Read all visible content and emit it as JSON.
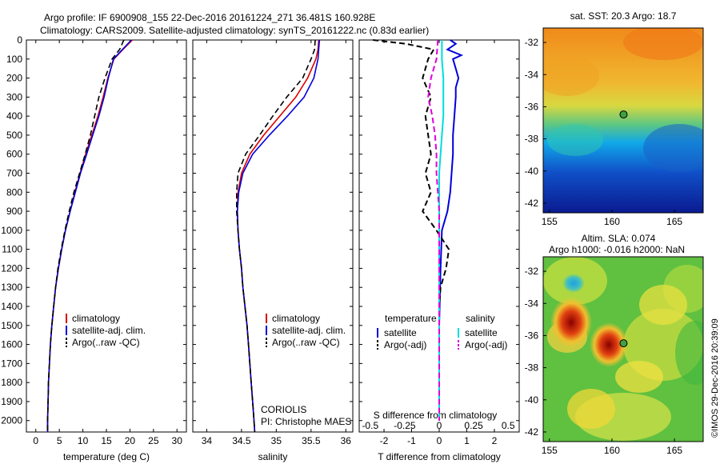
{
  "header": {
    "line1": "Argo profile: IF 6900908_155 22-Dec-2016 20161224_271 36.481S 160.928E",
    "line2": "Climatology: CARS2009. Satellite-adjusted climatology: synTS_20161222.nc (0.83d earlier)"
  },
  "colors": {
    "climatology": "#dd0000",
    "satellite": "#0000dd",
    "argo": "#000000",
    "salinity_satellite": "#00dddd",
    "salinity_argo": "#dd00dd"
  },
  "chart_data": [
    {
      "type": "line",
      "name": "temperature profile",
      "xlabel": "temperature (deg C)",
      "ylabel": "",
      "xlim": [
        -2,
        32
      ],
      "ylim": [
        2060,
        0
      ],
      "y_reversed": true,
      "xticks": [
        0,
        5,
        10,
        15,
        20,
        25,
        30
      ],
      "yticks": [
        0,
        100,
        200,
        300,
        400,
        500,
        600,
        700,
        800,
        900,
        1000,
        1100,
        1200,
        1300,
        1400,
        1500,
        1600,
        1700,
        1800,
        1900,
        2000
      ],
      "legend": [
        "climatology",
        "satellite-adj. clim.",
        "Argo(..raw -QC)"
      ],
      "legend_position": "lower-center",
      "series": [
        {
          "name": "climatology",
          "color": "#dd0000",
          "depth": [
            0,
            50,
            100,
            200,
            300,
            400,
            500,
            600,
            700,
            800,
            900,
            1000,
            1100,
            1200,
            1300,
            1400,
            1500,
            1600,
            1700,
            1800,
            1900,
            2000,
            2060
          ],
          "values": [
            20.5,
            18.5,
            16.6,
            15.3,
            14.3,
            13.2,
            11.9,
            10.6,
            9.4,
            8.3,
            7.3,
            6.3,
            5.5,
            4.8,
            4.2,
            3.8,
            3.4,
            3.1,
            2.9,
            2.7,
            2.6,
            2.5,
            2.5
          ]
        },
        {
          "name": "satellite-adj. clim.",
          "color": "#0000dd",
          "depth": [
            0,
            50,
            100,
            200,
            300,
            400,
            500,
            600,
            700,
            800,
            900,
            1000,
            1100,
            1200,
            1300,
            1400,
            1500,
            1600,
            1700,
            1800,
            1900,
            2000,
            2060
          ],
          "values": [
            20.3,
            18.4,
            16.5,
            15.4,
            14.5,
            13.4,
            12.1,
            10.8,
            9.5,
            8.4,
            7.3,
            6.3,
            5.5,
            4.8,
            4.2,
            3.8,
            3.4,
            3.1,
            2.9,
            2.7,
            2.6,
            2.5,
            2.5
          ]
        },
        {
          "name": "Argo(..raw -QC)",
          "color": "#000000",
          "depth": [
            0,
            50,
            100,
            200,
            300,
            400,
            500,
            600,
            700,
            800,
            900,
            1000,
            1100,
            1200,
            1300,
            1400,
            1500,
            1600,
            1700,
            1800,
            1900,
            2000,
            2060
          ],
          "values": [
            18.7,
            17.8,
            16.2,
            14.7,
            13.4,
            12.5,
            11.6,
            10.5,
            9.3,
            8.1,
            7.1,
            6.2,
            5.4,
            4.7,
            4.2,
            3.8,
            3.4,
            3.1,
            2.9,
            2.7,
            2.6,
            2.5,
            2.5
          ]
        }
      ]
    },
    {
      "type": "line",
      "name": "salinity profile",
      "xlabel": "salinity",
      "ylabel": "",
      "xlim": [
        33.8,
        36.1
      ],
      "ylim": [
        2060,
        0
      ],
      "y_reversed": true,
      "xticks": [
        34,
        34.5,
        35,
        35.5,
        36
      ],
      "xticklabels": [
        "34",
        "34.5",
        "35",
        "35.5",
        "36"
      ],
      "legend": [
        "climatology",
        "satellite-adj. clim.",
        "Argo(..raw -QC)"
      ],
      "legend_position": "lower-right",
      "annotation": [
        "CORIOLIS",
        "PI: Christophe MAES"
      ],
      "series": [
        {
          "name": "climatology",
          "color": "#dd0000",
          "depth": [
            0,
            50,
            100,
            200,
            300,
            400,
            500,
            600,
            700,
            800,
            900,
            1000,
            1100,
            1200,
            1300,
            1400,
            1500,
            1600,
            1700,
            1800,
            1900,
            2000,
            2060
          ],
          "values": [
            35.61,
            35.6,
            35.57,
            35.45,
            35.28,
            35.05,
            34.82,
            34.62,
            34.5,
            34.45,
            34.44,
            34.45,
            34.47,
            34.5,
            34.52,
            34.55,
            34.58,
            34.6,
            34.62,
            34.64,
            34.66,
            34.68,
            34.69
          ]
        },
        {
          "name": "satellite-adj. clim.",
          "color": "#0000dd",
          "depth": [
            0,
            50,
            100,
            200,
            300,
            400,
            500,
            600,
            700,
            800,
            900,
            1000,
            1100,
            1200,
            1300,
            1400,
            1500,
            1600,
            1700,
            1800,
            1900,
            2000,
            2060
          ],
          "values": [
            35.62,
            35.61,
            35.6,
            35.54,
            35.4,
            35.16,
            34.9,
            34.66,
            34.52,
            34.46,
            34.44,
            34.45,
            34.47,
            34.5,
            34.52,
            34.55,
            34.58,
            34.6,
            34.62,
            34.64,
            34.66,
            34.68,
            34.69
          ]
        },
        {
          "name": "Argo(..raw -QC)",
          "color": "#000000",
          "depth": [
            0,
            50,
            100,
            200,
            300,
            400,
            500,
            600,
            700,
            800,
            900,
            1000,
            1100,
            1200,
            1300,
            1400,
            1500,
            1600,
            1700,
            1800,
            1900,
            2000,
            2060
          ],
          "values": [
            35.56,
            35.55,
            35.5,
            35.38,
            35.15,
            34.95,
            34.76,
            34.56,
            34.45,
            34.43,
            34.43,
            34.45,
            34.47,
            34.5,
            34.52,
            34.55,
            34.58,
            34.6,
            34.62,
            34.64,
            34.66,
            34.68,
            34.69
          ]
        }
      ]
    },
    {
      "type": "line",
      "name": "difference from climatology",
      "xlabel": "T difference from climatology",
      "xlabel2": "S difference from climatology",
      "xlim": [
        -2.9,
        2.9
      ],
      "ylim": [
        2060,
        0
      ],
      "y_reversed": true,
      "xticks": [
        -2,
        -1,
        0,
        1,
        2
      ],
      "xticks2": [
        -0.5,
        -0.25,
        0,
        0.25,
        0.5
      ],
      "xticklabels2": [
        "-0.5",
        "-0.25",
        "0",
        "0.25",
        "0.5"
      ],
      "legend_titles": [
        "temperature",
        "salinity"
      ],
      "legend": [
        "satellite",
        "Argo(-adj)",
        "satellite",
        "Argo(-adj)"
      ],
      "series": [
        {
          "name": "satellite",
          "quantity": "temperature",
          "color": "#0000dd",
          "depth": [
            0,
            20,
            50,
            80,
            100,
            150,
            200,
            250,
            300,
            400,
            500,
            600,
            700,
            800,
            900,
            1000,
            1200,
            1500,
            2000
          ],
          "values": [
            0.4,
            0.6,
            0.3,
            0.8,
            0.5,
            0.6,
            0.7,
            0.6,
            0.6,
            0.55,
            0.5,
            0.5,
            0.45,
            0.4,
            0.3,
            0.1,
            0.05,
            0.0,
            0.0
          ]
        },
        {
          "name": "Argo(-adj)",
          "quantity": "temperature",
          "color": "#000000",
          "depth": [
            0,
            20,
            50,
            100,
            200,
            300,
            400,
            500,
            600,
            700,
            800,
            900,
            1000,
            1100,
            1200,
            1300,
            1400,
            1500,
            2000
          ],
          "values": [
            -2.4,
            -1.2,
            -0.2,
            -0.4,
            -0.6,
            -0.3,
            -0.5,
            -0.4,
            -0.3,
            -0.5,
            -0.3,
            -0.6,
            -0.1,
            0.35,
            0.25,
            0.05,
            0.0,
            0.0,
            0.0
          ]
        },
        {
          "name": "satellite",
          "quantity": "salinity",
          "color": "#00dddd",
          "depth": [
            0,
            100,
            200,
            300,
            400,
            500,
            600,
            700,
            800,
            900,
            1000,
            1500,
            2000
          ],
          "values": [
            0.02,
            0.02,
            0.03,
            0.03,
            0.03,
            0.02,
            0.01,
            0.0,
            0.0,
            0.0,
            0.0,
            0.0,
            0.0
          ]
        },
        {
          "name": "Argo(-adj)",
          "quantity": "salinity",
          "color": "#dd00dd",
          "depth": [
            0,
            100,
            200,
            300,
            400,
            500,
            600,
            700,
            800,
            900,
            1000,
            1200,
            1500,
            2000
          ],
          "values": [
            -0.01,
            -0.02,
            -0.06,
            -0.08,
            -0.05,
            -0.03,
            -0.02,
            -0.02,
            -0.01,
            0.0,
            0.0,
            0.0,
            0.0,
            0.0
          ]
        }
      ]
    },
    {
      "type": "heatmap",
      "name": "satellite SST map",
      "title": "sat. SST: 20.3  Argo: 18.7",
      "xlim": [
        154.5,
        167.3
      ],
      "ylim": [
        -42.6,
        -31.1
      ],
      "xticks": [
        155,
        160,
        165
      ],
      "yticks": [
        -32,
        -34,
        -36,
        -38,
        -40,
        -42
      ],
      "marker": {
        "lon": 160.928,
        "lat": -36.481
      }
    },
    {
      "type": "heatmap",
      "name": "altimetry SLA map",
      "title": "Altim. SLA: 0.074",
      "title2": "Argo h1000: -0.016 h2000: NaN",
      "xlim": [
        154.5,
        167.3
      ],
      "ylim": [
        -42.6,
        -31.1
      ],
      "xticks": [
        155,
        160,
        165
      ],
      "yticks": [
        -32,
        -34,
        -36,
        -38,
        -40,
        -42
      ],
      "marker": {
        "lon": 160.928,
        "lat": -36.481
      }
    }
  ],
  "footer": {
    "credit": "©IMOS 29-Dec-2016 20:39:09"
  }
}
